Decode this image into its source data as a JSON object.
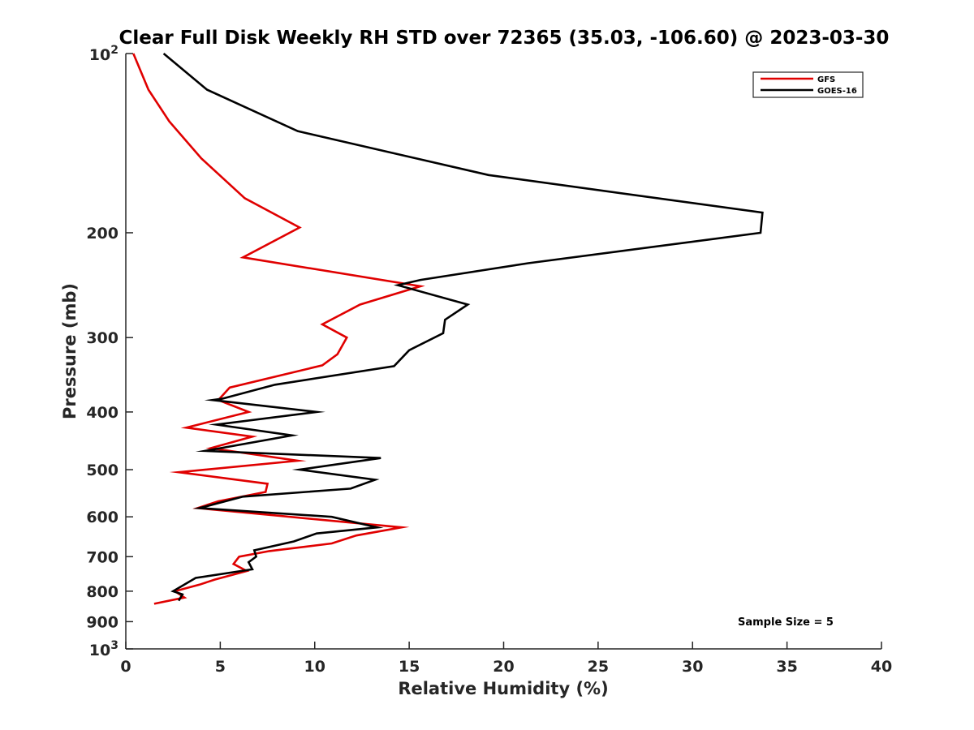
{
  "chart_data": {
    "type": "line",
    "title": "Clear Full Disk Weekly RH STD over 72365 (35.03, -106.60) @ 2023-03-30",
    "xlabel": "Relative Humidity (%)",
    "ylabel": "Pressure (mb)",
    "xlim": [
      0,
      40
    ],
    "ylim": [
      100,
      1000
    ],
    "yscale": "log",
    "y_reversed": true,
    "grid": false,
    "legend_position": "top-right",
    "x_ticks": [
      {
        "value": 0,
        "label": "0"
      },
      {
        "value": 5,
        "label": "5"
      },
      {
        "value": 10,
        "label": "10"
      },
      {
        "value": 15,
        "label": "15"
      },
      {
        "value": 20,
        "label": "20"
      },
      {
        "value": 25,
        "label": "25"
      },
      {
        "value": 30,
        "label": "30"
      },
      {
        "value": 35,
        "label": "35"
      },
      {
        "value": 40,
        "label": "40"
      }
    ],
    "y_ticks": [
      {
        "value": 200,
        "label": "200"
      },
      {
        "value": 300,
        "label": "300"
      },
      {
        "value": 400,
        "label": "400"
      },
      {
        "value": 500,
        "label": "500"
      },
      {
        "value": 600,
        "label": "600"
      },
      {
        "value": 700,
        "label": "700"
      },
      {
        "value": 800,
        "label": "800"
      },
      {
        "value": 900,
        "label": "900"
      }
    ],
    "y_pow_ticks": [
      {
        "value": 100,
        "base": "10",
        "exp": "2"
      },
      {
        "value": 1000,
        "base": "10",
        "exp": "3"
      }
    ],
    "annotation": "Sample Size = 5",
    "series": [
      {
        "name": "GFS",
        "color": "#e00000",
        "points": [
          [
            0.4,
            100
          ],
          [
            1.2,
            115
          ],
          [
            2.3,
            130
          ],
          [
            4.0,
            150
          ],
          [
            6.3,
            175
          ],
          [
            9.2,
            196
          ],
          [
            6.2,
            220
          ],
          [
            15.6,
            246
          ],
          [
            12.4,
            264
          ],
          [
            10.4,
            285
          ],
          [
            11.7,
            300
          ],
          [
            11.2,
            320
          ],
          [
            10.4,
            334
          ],
          [
            5.5,
            364
          ],
          [
            4.9,
            382
          ],
          [
            6.5,
            400
          ],
          [
            3.2,
            425
          ],
          [
            6.7,
            440
          ],
          [
            4.5,
            460
          ],
          [
            9.1,
            483
          ],
          [
            2.8,
            505
          ],
          [
            7.5,
            528
          ],
          [
            7.4,
            545
          ],
          [
            4.9,
            565
          ],
          [
            3.8,
            580
          ],
          [
            8.2,
            598
          ],
          [
            14.6,
            625
          ],
          [
            12.2,
            645
          ],
          [
            10.9,
            665
          ],
          [
            7.6,
            685
          ],
          [
            6.0,
            700
          ],
          [
            5.7,
            720
          ],
          [
            6.4,
            740
          ],
          [
            4.7,
            765
          ],
          [
            3.9,
            780
          ],
          [
            2.6,
            800
          ],
          [
            3.1,
            820
          ],
          [
            1.5,
            840
          ]
        ]
      },
      {
        "name": "GOES-16",
        "color": "#000000",
        "points": [
          [
            2.0,
            100
          ],
          [
            4.3,
            115
          ],
          [
            9.1,
            135
          ],
          [
            19.2,
            160
          ],
          [
            33.7,
            185
          ],
          [
            33.6,
            200
          ],
          [
            21.3,
            225
          ],
          [
            15.6,
            240
          ],
          [
            14.4,
            245
          ],
          [
            18.1,
            264
          ],
          [
            16.9,
            280
          ],
          [
            16.8,
            295
          ],
          [
            15.0,
            315
          ],
          [
            14.2,
            335
          ],
          [
            7.9,
            360
          ],
          [
            5.1,
            380
          ],
          [
            4.6,
            382
          ],
          [
            10.1,
            400
          ],
          [
            4.8,
            420
          ],
          [
            8.8,
            438
          ],
          [
            4.2,
            465
          ],
          [
            13.5,
            478
          ],
          [
            9.2,
            500
          ],
          [
            13.2,
            520
          ],
          [
            11.9,
            538
          ],
          [
            6.2,
            555
          ],
          [
            3.9,
            580
          ],
          [
            10.9,
            600
          ],
          [
            13.3,
            625
          ],
          [
            10.1,
            640
          ],
          [
            8.9,
            660
          ],
          [
            6.8,
            683
          ],
          [
            6.9,
            700
          ],
          [
            6.5,
            715
          ],
          [
            6.7,
            735
          ],
          [
            3.7,
            760
          ],
          [
            2.5,
            800
          ],
          [
            3.0,
            810
          ],
          [
            2.8,
            830
          ]
        ]
      }
    ]
  }
}
